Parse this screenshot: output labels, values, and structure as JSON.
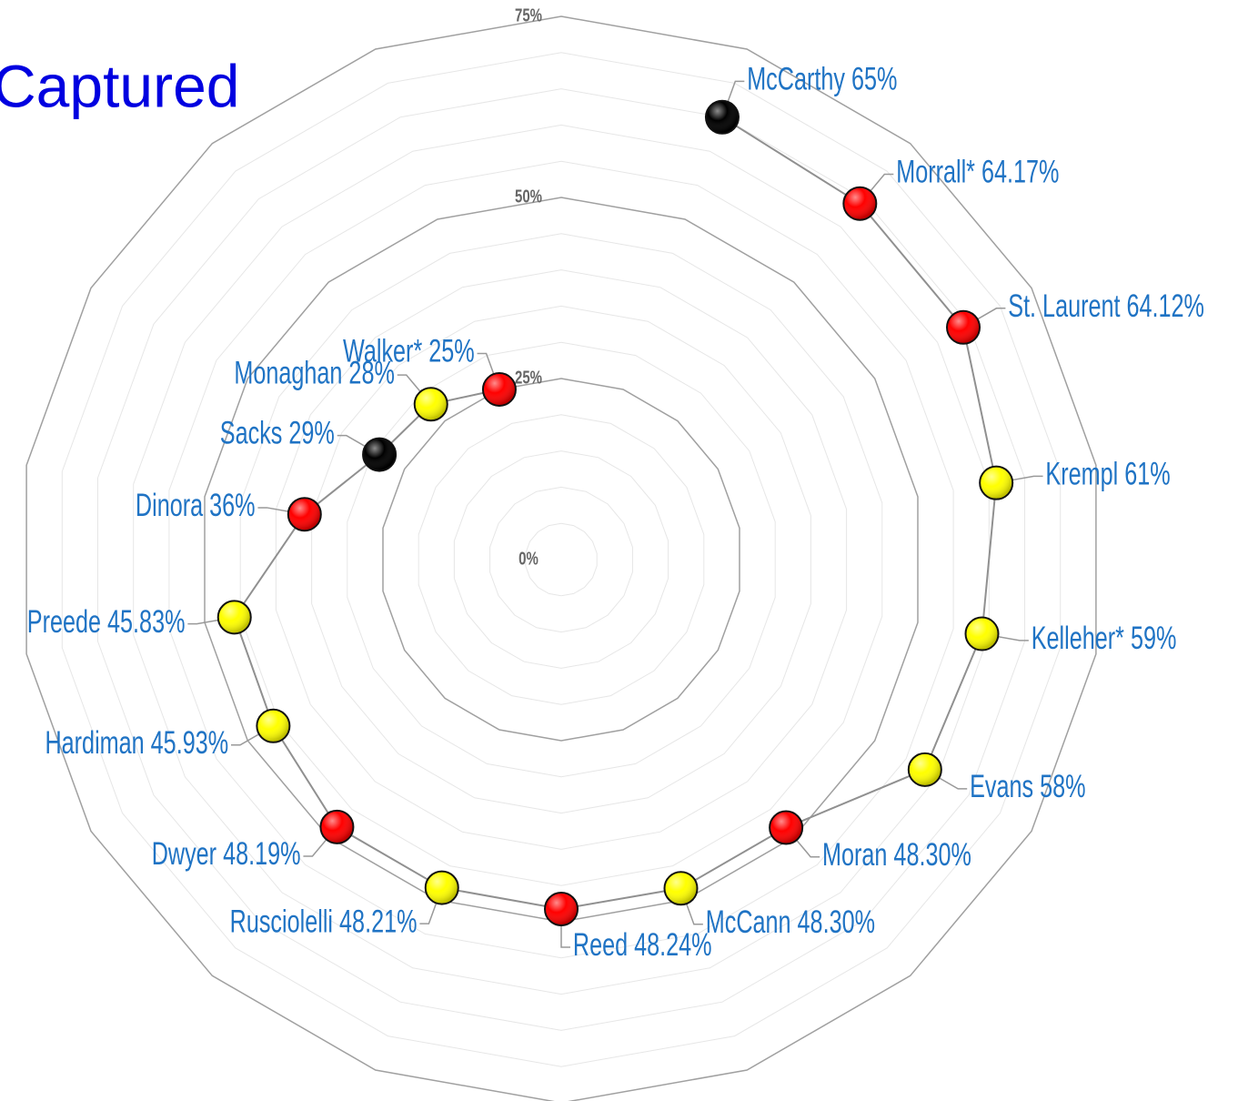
{
  "chart_data": {
    "type": "radar",
    "title": "Captured",
    "categories": [
      null,
      "McCarthy",
      "Morrall*",
      "St. Laurent",
      "Krempl",
      "Kelleher*",
      "Evans",
      "Moran",
      "McCann",
      "Reed",
      "Rusciolelli",
      "Dwyer",
      "Hardiman",
      "Preede",
      "Dinora",
      "Sacks",
      "Monaghan",
      "Walker*"
    ],
    "values": [
      null,
      65,
      64.17,
      64.12,
      61,
      59,
      58,
      48.3,
      48.3,
      48.24,
      48.21,
      48.19,
      45.93,
      45.83,
      36,
      29,
      28,
      25
    ],
    "value_labels": [
      null,
      "65%",
      "64.17%",
      "64.12%",
      "61%",
      "59%",
      "58%",
      "48.30%",
      "48.30%",
      "48.24%",
      "48.21%",
      "48.19%",
      "45.93%",
      "45.83%",
      "36%",
      "29%",
      "28%",
      "25%"
    ],
    "colors": [
      null,
      "#000000",
      "#ff0000",
      "#ff0000",
      "#ffff00",
      "#ffff00",
      "#ffff00",
      "#ff0000",
      "#ffff00",
      "#ff0000",
      "#ffff00",
      "#ff0000",
      "#ffff00",
      "#ffff00",
      "#ff0000",
      "#000000",
      "#ffff00",
      "#ff0000"
    ],
    "rlim": [
      0,
      75
    ],
    "rticks": [
      {
        "value": 0,
        "label": "0%"
      },
      {
        "value": 25,
        "label": "25%"
      },
      {
        "value": 50,
        "label": "50%"
      },
      {
        "value": 75,
        "label": "75%"
      }
    ],
    "grid": true
  }
}
